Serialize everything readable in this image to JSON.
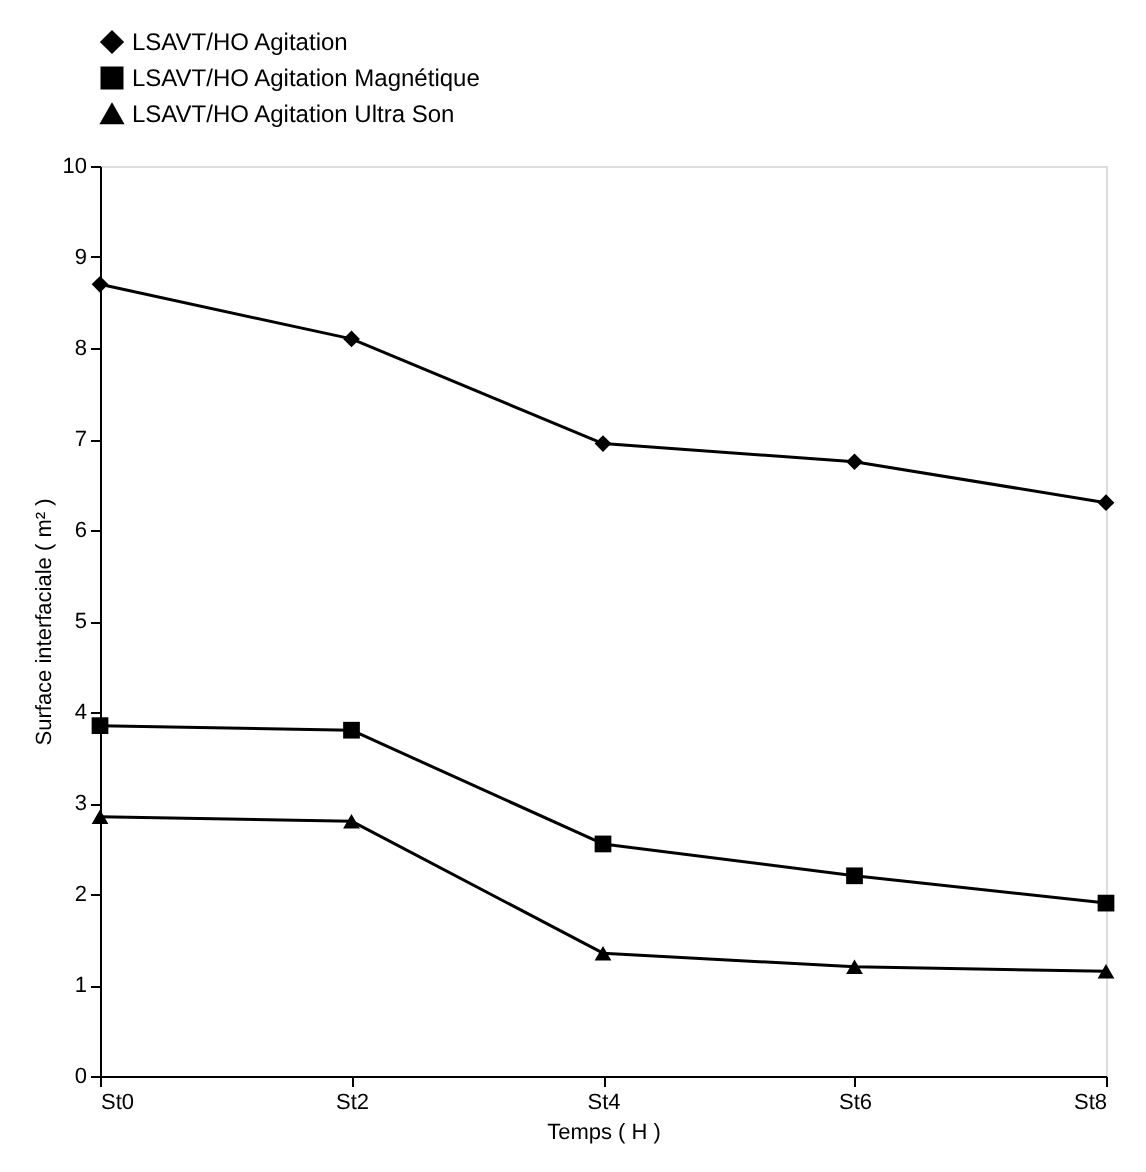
{
  "chart_data": {
    "type": "line",
    "xlabel": "Temps ( H )",
    "ylabel": "Surface interfaciale ( m² )",
    "categories": [
      "St0",
      "St2",
      "St4",
      "St6",
      "St8"
    ],
    "ylim": [
      0,
      10
    ],
    "yticks": [
      0,
      1,
      2,
      3,
      4,
      5,
      6,
      7,
      8,
      9,
      10
    ],
    "grid": false,
    "legend": "top",
    "series": [
      {
        "name": "LSAVT/HO   Agitation",
        "color": "#000000",
        "marker": "diamond",
        "values": [
          8.7,
          8.1,
          6.95,
          6.75,
          6.3
        ]
      },
      {
        "name": "LSAVT/HO   Agitation Magnétique",
        "color": "#000000",
        "marker": "square",
        "values": [
          3.85,
          3.8,
          2.55,
          2.2,
          1.9
        ]
      },
      {
        "name": "LSAVT/HO   Agitation Ultra Son",
        "color": "#000000",
        "marker": "triangle",
        "values": [
          2.85,
          2.8,
          1.35,
          1.2,
          1.15
        ]
      }
    ]
  }
}
